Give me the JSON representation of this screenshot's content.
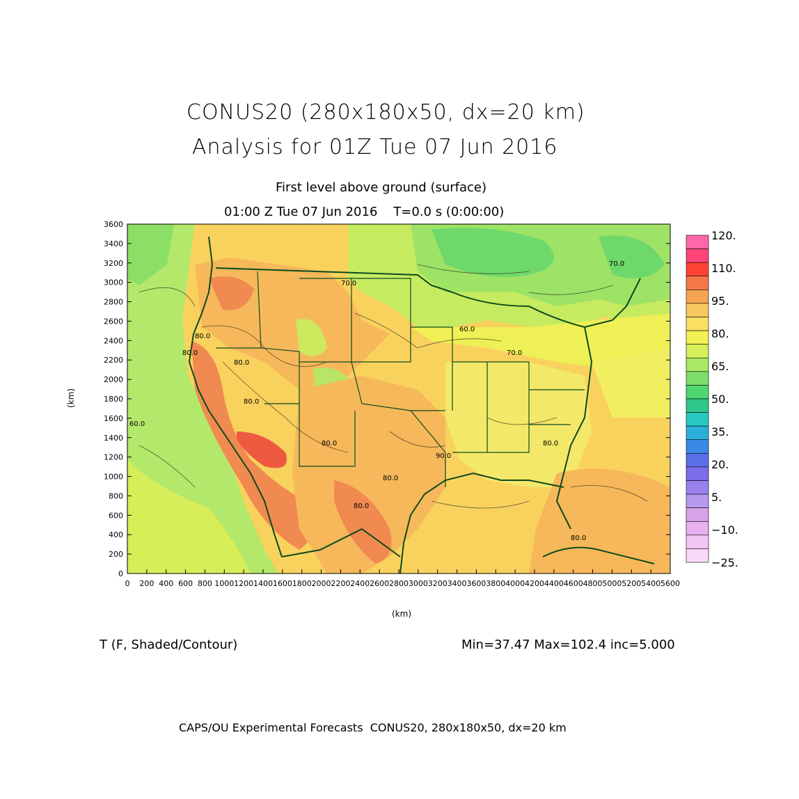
{
  "header": {
    "title_line1": "CONUS20 (280x180x50, dx=20 km)",
    "title_line2": "Analysis for 01Z Tue 07 Jun 2016",
    "subtitle_line1": "First level above ground (surface)",
    "subtitle_line2": "01:00 Z Tue 07 Jun 2016    T=0.0 s (0:00:00)"
  },
  "axes": {
    "x_label": "(km)",
    "y_label": "(km)",
    "x_ticks": [
      "0",
      "200",
      "400",
      "600",
      "800",
      "1000",
      "1200",
      "1400",
      "1600",
      "1800",
      "2000",
      "2200",
      "2400",
      "2600",
      "2800",
      "3000",
      "3200",
      "3400",
      "3600",
      "3800",
      "4000",
      "4200",
      "4400",
      "4600",
      "4800",
      "5000",
      "5200",
      "5400",
      "5600"
    ],
    "y_ticks": [
      "0",
      "200",
      "400",
      "600",
      "800",
      "1000",
      "1200",
      "1400",
      "1600",
      "1800",
      "2000",
      "2200",
      "2400",
      "2600",
      "2800",
      "3000",
      "3200",
      "3400",
      "3600"
    ],
    "x_range": [
      0,
      5600
    ],
    "y_range": [
      0,
      3600
    ]
  },
  "colorbar": {
    "labels": [
      "120.",
      "110.",
      "95.",
      "80.",
      "65.",
      "50.",
      "35.",
      "20.",
      "5.",
      "−10.",
      "−25."
    ],
    "colors": [
      "#ff66aa",
      "#ff4477",
      "#ff4433",
      "#f5784a",
      "#f5a550",
      "#f7c860",
      "#f9e060",
      "#f2f055",
      "#d6ef5a",
      "#a8e866",
      "#7cde6a",
      "#4fd670",
      "#30c88a",
      "#28c8c0",
      "#2ab0d8",
      "#3a88e8",
      "#5a6ee8",
      "#7c6ee8",
      "#9a82ee",
      "#b898ee",
      "#d8a2e8",
      "#e8b0ee",
      "#f2c4f4",
      "#fad8fa"
    ]
  },
  "map": {
    "contour_labels": [
      "80.0",
      "70.0",
      "60.0",
      "80.0",
      "80.0",
      "60.0",
      "70.0",
      "70.0",
      "80.0",
      "90.0",
      "80.0",
      "80.0",
      "80.0",
      "80.0",
      "80.0"
    ]
  },
  "footer": {
    "variable": "T (F, Shaded/Contour)",
    "stats": "Min=37.47 Max=102.4 inc=5.000",
    "credit": "CAPS/OU Experimental Forecasts  CONUS20, 280x180x50, dx=20 km"
  }
}
